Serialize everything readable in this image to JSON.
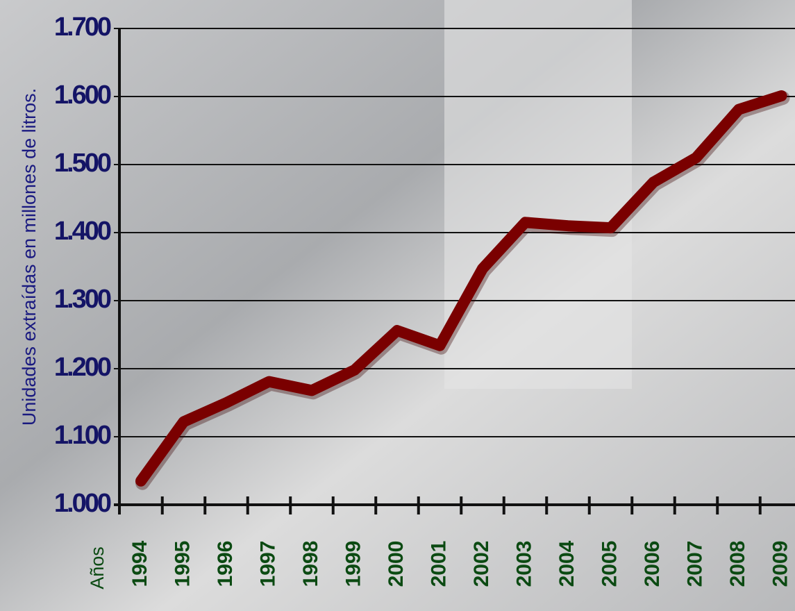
{
  "chart_data": {
    "type": "line",
    "y_label": "Unidades extraídas en millones de litros.",
    "x_label": "Años",
    "categories": [
      "1994",
      "1995",
      "1996",
      "1997",
      "1998",
      "1999",
      "2000",
      "2001",
      "2002",
      "2003",
      "2004",
      "2005",
      "2006",
      "2007",
      "2008",
      "2009"
    ],
    "values": [
      1035,
      1122,
      1150,
      1181,
      1168,
      1198,
      1256,
      1234,
      1347,
      1415,
      1410,
      1407,
      1474,
      1510,
      1581,
      1601
    ],
    "color": "#7a0000",
    "ylim": [
      1000,
      1700
    ],
    "yticks": [
      {
        "value": 1000,
        "label": "1.000"
      },
      {
        "value": 1100,
        "label": "1.100"
      },
      {
        "value": 1200,
        "label": "1.200"
      },
      {
        "value": 1300,
        "label": "1.300"
      },
      {
        "value": 1400,
        "label": "1.400"
      },
      {
        "value": 1500,
        "label": "1.500"
      },
      {
        "value": 1600,
        "label": "1.600"
      },
      {
        "value": 1700,
        "label": "1.700"
      }
    ],
    "grid": true
  }
}
